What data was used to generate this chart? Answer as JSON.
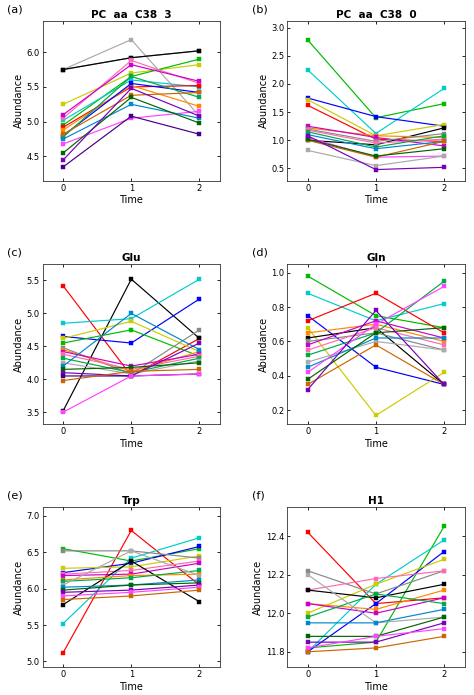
{
  "panels": [
    {
      "label": "(a)",
      "title": "PC  aa  C38  3",
      "ylabel": "Abundance",
      "xlabel": "Time",
      "ylim": [
        4.15,
        6.45
      ],
      "yticks": [
        4.5,
        5.0,
        5.5,
        6.0
      ],
      "series": [
        {
          "color": "#aaaaaa",
          "values": [
            5.75,
            6.18,
            5.08
          ]
        },
        {
          "color": "#888888",
          "values": [
            5.75,
            5.92,
            6.02
          ]
        },
        {
          "color": "#000000",
          "values": [
            5.75,
            5.92,
            6.02
          ]
        },
        {
          "color": "#cccc00",
          "values": [
            5.25,
            5.7,
            5.82
          ]
        },
        {
          "color": "#00bb00",
          "values": [
            4.95,
            5.65,
            5.9
          ]
        },
        {
          "color": "#00cccc",
          "values": [
            5.02,
            5.6,
            5.5
          ]
        },
        {
          "color": "#ff69b4",
          "values": [
            5.05,
            5.88,
            5.55
          ]
        },
        {
          "color": "#cc00cc",
          "values": [
            5.1,
            5.82,
            5.58
          ]
        },
        {
          "color": "#ff0000",
          "values": [
            4.92,
            5.5,
            5.52
          ]
        },
        {
          "color": "#ff8800",
          "values": [
            4.88,
            5.52,
            5.22
          ]
        },
        {
          "color": "#0000ff",
          "values": [
            4.8,
            5.55,
            5.42
          ]
        },
        {
          "color": "#00aa44",
          "values": [
            4.78,
            5.65,
            5.35
          ]
        },
        {
          "color": "#ff44ff",
          "values": [
            4.68,
            5.05,
            5.15
          ]
        },
        {
          "color": "#0088cc",
          "values": [
            4.75,
            5.25,
            5.05
          ]
        },
        {
          "color": "#cc6600",
          "values": [
            4.82,
            5.38,
            5.42
          ]
        },
        {
          "color": "#006600",
          "values": [
            4.55,
            5.35,
            4.98
          ]
        },
        {
          "color": "#7700bb",
          "values": [
            4.45,
            5.48,
            5.08
          ]
        },
        {
          "color": "#440088",
          "values": [
            4.35,
            5.08,
            4.82
          ]
        }
      ]
    },
    {
      "label": "(b)",
      "title": "PC  aa  C38  0",
      "ylabel": "Abundance",
      "xlabel": "Time",
      "ylim": [
        0.28,
        3.12
      ],
      "yticks": [
        0.5,
        1.0,
        1.5,
        2.0,
        2.5,
        3.0
      ],
      "series": [
        {
          "color": "#00bb00",
          "values": [
            2.78,
            1.4,
            1.65
          ]
        },
        {
          "color": "#00cccc",
          "values": [
            2.25,
            1.12,
            1.92
          ]
        },
        {
          "color": "#0000ff",
          "values": [
            1.75,
            1.42,
            1.25
          ]
        },
        {
          "color": "#ff0000",
          "values": [
            1.62,
            1.02,
            0.98
          ]
        },
        {
          "color": "#cccc00",
          "values": [
            1.72,
            1.08,
            1.28
          ]
        },
        {
          "color": "#000000",
          "values": [
            1.0,
            0.92,
            1.22
          ]
        },
        {
          "color": "#ff8800",
          "values": [
            1.22,
            1.08,
            1.05
          ]
        },
        {
          "color": "#cc00cc",
          "values": [
            1.25,
            1.05,
            0.9
          ]
        },
        {
          "color": "#888888",
          "values": [
            1.2,
            0.98,
            1.12
          ]
        },
        {
          "color": "#ff69b4",
          "values": [
            1.18,
            0.95,
            1.02
          ]
        },
        {
          "color": "#00aa44",
          "values": [
            1.15,
            0.88,
            1.08
          ]
        },
        {
          "color": "#0088cc",
          "values": [
            1.1,
            0.85,
            0.98
          ]
        },
        {
          "color": "#ff44ff",
          "values": [
            1.05,
            0.7,
            0.72
          ]
        },
        {
          "color": "#aaaaaa",
          "values": [
            0.82,
            0.55,
            0.72
          ]
        },
        {
          "color": "#cc6600",
          "values": [
            1.0,
            0.7,
            0.98
          ]
        },
        {
          "color": "#006600",
          "values": [
            1.02,
            0.72,
            0.85
          ]
        },
        {
          "color": "#7700bb",
          "values": [
            1.08,
            0.48,
            0.52
          ]
        }
      ]
    },
    {
      "label": "(c)",
      "title": "Glu",
      "ylabel": "Abundance",
      "xlabel": "Time",
      "ylim": [
        3.32,
        5.75
      ],
      "yticks": [
        3.5,
        4.0,
        4.5,
        5.0,
        5.5
      ],
      "series": [
        {
          "color": "#ff0000",
          "values": [
            5.42,
            4.05,
            4.62
          ]
        },
        {
          "color": "#000000",
          "values": [
            3.52,
            5.52,
            4.62
          ]
        },
        {
          "color": "#00cccc",
          "values": [
            4.85,
            4.92,
            5.52
          ]
        },
        {
          "color": "#0000ff",
          "values": [
            4.65,
            4.55,
            5.22
          ]
        },
        {
          "color": "#cccc00",
          "values": [
            4.62,
            4.88,
            4.42
          ]
        },
        {
          "color": "#00bb00",
          "values": [
            4.55,
            4.75,
            4.35
          ]
        },
        {
          "color": "#888888",
          "values": [
            4.48,
            4.08,
            4.75
          ]
        },
        {
          "color": "#ff8800",
          "values": [
            4.45,
            4.12,
            4.42
          ]
        },
        {
          "color": "#cc00cc",
          "values": [
            4.42,
            4.2,
            4.38
          ]
        },
        {
          "color": "#ff69b4",
          "values": [
            4.38,
            4.15,
            4.35
          ]
        },
        {
          "color": "#00aa44",
          "values": [
            4.32,
            4.1,
            4.32
          ]
        },
        {
          "color": "#aaaaaa",
          "values": [
            4.25,
            4.08,
            4.28
          ]
        },
        {
          "color": "#0088cc",
          "values": [
            4.2,
            5.0,
            4.45
          ]
        },
        {
          "color": "#006600",
          "values": [
            4.15,
            4.18,
            4.25
          ]
        },
        {
          "color": "#7700bb",
          "values": [
            4.1,
            4.05,
            4.55
          ]
        },
        {
          "color": "#440088",
          "values": [
            4.05,
            4.05,
            4.08
          ]
        },
        {
          "color": "#cc6600",
          "values": [
            3.98,
            4.12,
            4.15
          ]
        },
        {
          "color": "#ff44ff",
          "values": [
            3.5,
            4.05,
            4.08
          ]
        }
      ]
    },
    {
      "label": "(d)",
      "title": "Gln",
      "ylabel": "Abundance",
      "xlabel": "Time",
      "ylim": [
        0.12,
        1.05
      ],
      "yticks": [
        0.2,
        0.4,
        0.6,
        0.8,
        1.0
      ],
      "series": [
        {
          "color": "#00bb00",
          "values": [
            0.98,
            0.75,
            0.68
          ]
        },
        {
          "color": "#00cccc",
          "values": [
            0.88,
            0.72,
            0.82
          ]
        },
        {
          "color": "#0000ff",
          "values": [
            0.75,
            0.45,
            0.35
          ]
        },
        {
          "color": "#ff0000",
          "values": [
            0.72,
            0.88,
            0.65
          ]
        },
        {
          "color": "#cccc00",
          "values": [
            0.68,
            0.17,
            0.42
          ]
        },
        {
          "color": "#ff8800",
          "values": [
            0.65,
            0.7,
            0.6
          ]
        },
        {
          "color": "#000000",
          "values": [
            0.62,
            0.68,
            0.35
          ]
        },
        {
          "color": "#888888",
          "values": [
            0.6,
            0.65,
            0.55
          ]
        },
        {
          "color": "#cc00cc",
          "values": [
            0.58,
            0.72,
            0.62
          ]
        },
        {
          "color": "#ff69b4",
          "values": [
            0.55,
            0.68,
            0.58
          ]
        },
        {
          "color": "#00aa44",
          "values": [
            0.52,
            0.65,
            0.95
          ]
        },
        {
          "color": "#aaaaaa",
          "values": [
            0.48,
            0.6,
            0.55
          ]
        },
        {
          "color": "#0088cc",
          "values": [
            0.45,
            0.62,
            0.62
          ]
        },
        {
          "color": "#ff44ff",
          "values": [
            0.42,
            0.7,
            0.92
          ]
        },
        {
          "color": "#006600",
          "values": [
            0.38,
            0.65,
            0.68
          ]
        },
        {
          "color": "#cc6600",
          "values": [
            0.35,
            0.58,
            0.35
          ]
        },
        {
          "color": "#7700bb",
          "values": [
            0.32,
            0.78,
            0.35
          ]
        }
      ]
    },
    {
      "label": "(e)",
      "title": "Trp",
      "ylabel": "Abundance",
      "xlabel": "Time",
      "ylim": [
        4.92,
        7.12
      ],
      "yticks": [
        5.0,
        5.5,
        6.0,
        6.5,
        7.0
      ],
      "series": [
        {
          "color": "#ff0000",
          "values": [
            5.12,
            6.8,
            6.05
          ]
        },
        {
          "color": "#00bb00",
          "values": [
            6.55,
            6.38,
            6.55
          ]
        },
        {
          "color": "#00cccc",
          "values": [
            5.52,
            6.42,
            6.7
          ]
        },
        {
          "color": "#0000ff",
          "values": [
            6.22,
            6.35,
            6.58
          ]
        },
        {
          "color": "#cccc00",
          "values": [
            6.28,
            6.3,
            6.45
          ]
        },
        {
          "color": "#888888",
          "values": [
            6.52,
            6.52,
            6.42
          ]
        },
        {
          "color": "#ff69b4",
          "values": [
            6.2,
            6.25,
            6.38
          ]
        },
        {
          "color": "#cc00cc",
          "values": [
            6.18,
            6.2,
            6.35
          ]
        },
        {
          "color": "#000000",
          "values": [
            5.78,
            6.38,
            5.82
          ]
        },
        {
          "color": "#ff8800",
          "values": [
            6.12,
            6.18,
            6.2
          ]
        },
        {
          "color": "#00aa44",
          "values": [
            6.1,
            6.15,
            6.25
          ]
        },
        {
          "color": "#aaaaaa",
          "values": [
            6.05,
            6.52,
            6.18
          ]
        },
        {
          "color": "#0088cc",
          "values": [
            6.02,
            6.05,
            6.12
          ]
        },
        {
          "color": "#006600",
          "values": [
            5.98,
            6.05,
            6.08
          ]
        },
        {
          "color": "#7700bb",
          "values": [
            5.95,
            5.98,
            6.05
          ]
        },
        {
          "color": "#ff44ff",
          "values": [
            5.9,
            5.95,
            6.02
          ]
        },
        {
          "color": "#cc6600",
          "values": [
            5.85,
            5.9,
            5.98
          ]
        }
      ]
    },
    {
      "label": "(f)",
      "title": "H1",
      "ylabel": "Abundance",
      "xlabel": "Time",
      "ylim": [
        11.72,
        12.55
      ],
      "yticks": [
        11.8,
        12.0,
        12.2,
        12.4
      ],
      "series": [
        {
          "color": "#ff0000",
          "values": [
            12.42,
            12.05,
            12.08
          ]
        },
        {
          "color": "#00bb00",
          "values": [
            11.82,
            11.85,
            12.45
          ]
        },
        {
          "color": "#00cccc",
          "values": [
            11.8,
            12.15,
            12.38
          ]
        },
        {
          "color": "#0000ff",
          "values": [
            11.8,
            12.05,
            12.32
          ]
        },
        {
          "color": "#cccc00",
          "values": [
            12.0,
            12.15,
            12.28
          ]
        },
        {
          "color": "#888888",
          "values": [
            12.22,
            12.1,
            12.22
          ]
        },
        {
          "color": "#ff69b4",
          "values": [
            12.12,
            12.18,
            12.22
          ]
        },
        {
          "color": "#000000",
          "values": [
            12.12,
            12.08,
            12.15
          ]
        },
        {
          "color": "#ff8800",
          "values": [
            12.05,
            12.02,
            12.12
          ]
        },
        {
          "color": "#cc00cc",
          "values": [
            12.05,
            12.0,
            12.08
          ]
        },
        {
          "color": "#00aa44",
          "values": [
            11.98,
            12.1,
            12.05
          ]
        },
        {
          "color": "#aaaaaa",
          "values": [
            12.2,
            11.95,
            11.98
          ]
        },
        {
          "color": "#0088cc",
          "values": [
            11.95,
            11.95,
            12.02
          ]
        },
        {
          "color": "#006600",
          "values": [
            11.88,
            11.88,
            11.98
          ]
        },
        {
          "color": "#7700bb",
          "values": [
            11.85,
            11.85,
            11.95
          ]
        },
        {
          "color": "#ff44ff",
          "values": [
            11.82,
            11.88,
            11.92
          ]
        },
        {
          "color": "#cc6600",
          "values": [
            11.8,
            11.82,
            11.88
          ]
        }
      ]
    }
  ],
  "time_points": [
    0,
    1,
    2
  ],
  "marker": "s",
  "markersize": 3.5,
  "linewidth": 0.85,
  "bg_color": "#f0f0f0",
  "plot_bg": "white",
  "border_color": "#aaaaaa"
}
